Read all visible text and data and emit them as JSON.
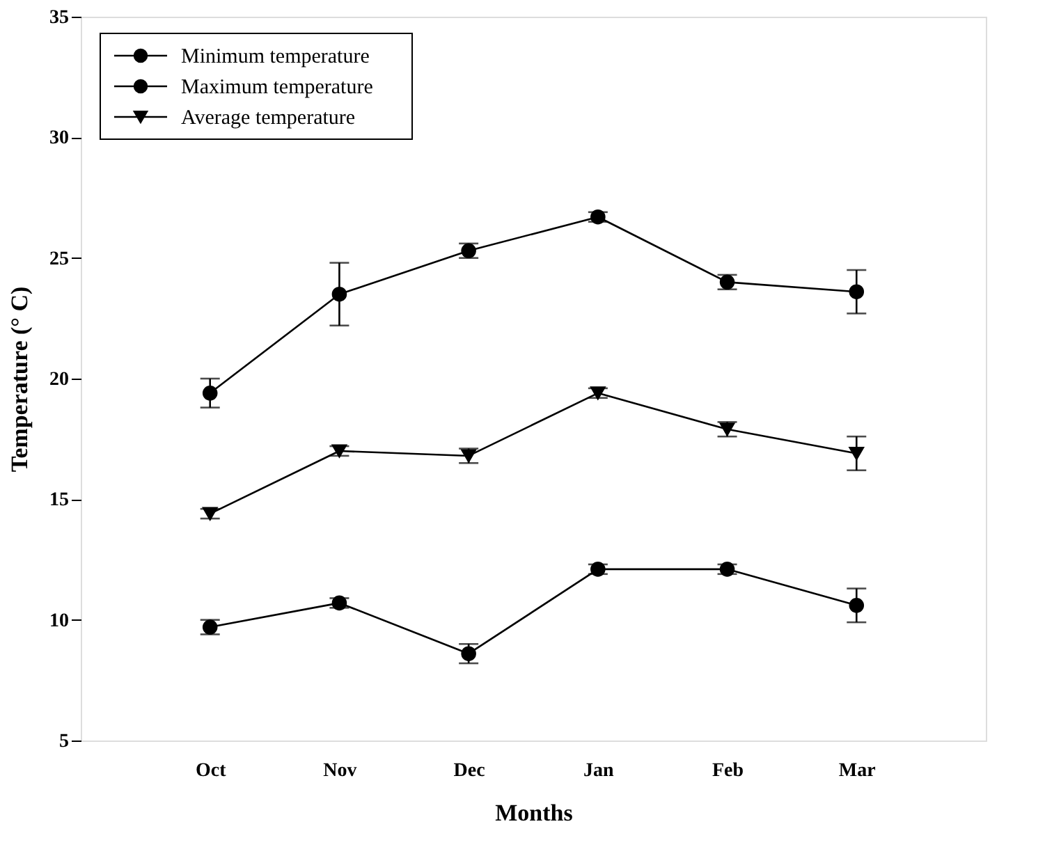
{
  "chart_data": {
    "type": "line",
    "xlabel": "Months",
    "ylabel": "Temperature (° C)",
    "categories": [
      "Oct",
      "Nov",
      "Dec",
      "Jan",
      "Feb",
      "Mar"
    ],
    "ylim": [
      5,
      35
    ],
    "yticks": [
      5,
      10,
      15,
      20,
      25,
      30,
      35
    ],
    "grid": false,
    "legend": "top left",
    "line_style": "solid",
    "series": [
      {
        "name": "Minimum temperature",
        "color": "#000000",
        "marker": "circle",
        "values": [
          9.7,
          10.7,
          8.6,
          12.1,
          12.1,
          10.6
        ],
        "errors": [
          0.3,
          0.2,
          0.4,
          0.2,
          0.2,
          0.7
        ]
      },
      {
        "name": "Maximum temperature",
        "color": "#000000",
        "marker": "circle",
        "values": [
          19.4,
          23.5,
          25.3,
          26.7,
          24.0,
          23.6
        ],
        "errors": [
          0.6,
          1.3,
          0.3,
          0.2,
          0.3,
          0.9
        ]
      },
      {
        "name": "Average temperature",
        "color": "#000000",
        "marker": "triangle",
        "values": [
          14.4,
          17.0,
          16.8,
          19.4,
          17.9,
          16.9
        ],
        "errors": [
          0.2,
          0.2,
          0.3,
          0.2,
          0.3,
          0.7
        ]
      }
    ]
  }
}
